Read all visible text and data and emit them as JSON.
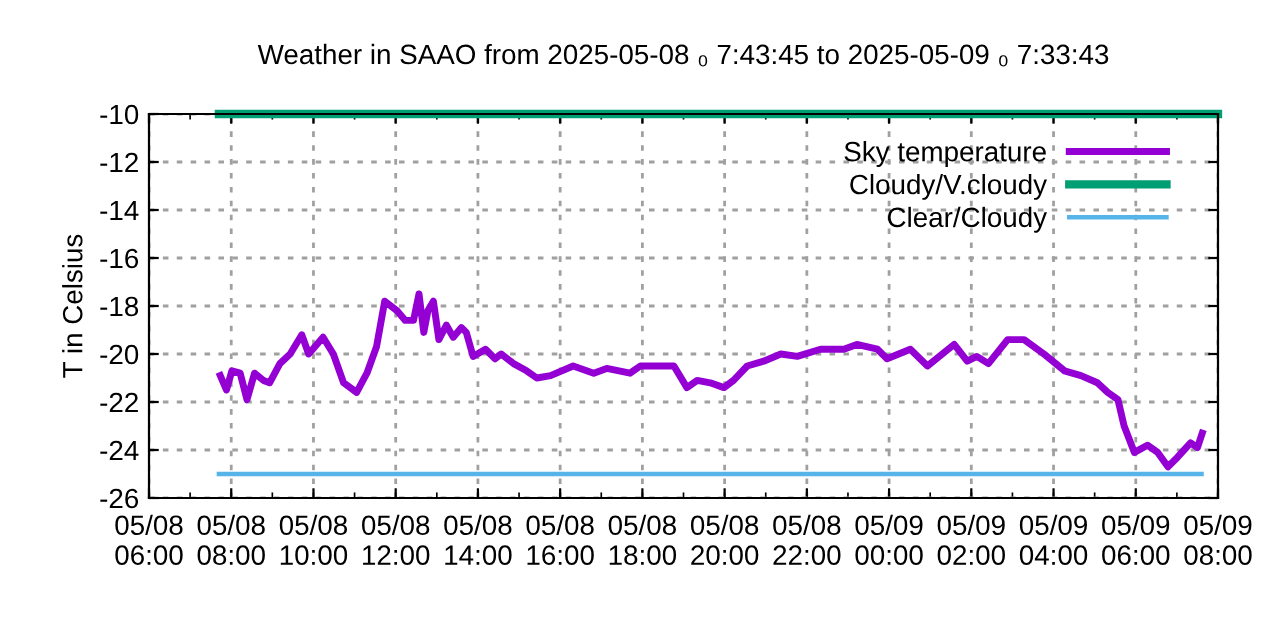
{
  "chart_data": {
    "type": "line",
    "title": "Weather in SAAO from 2025-05-08 ₀ 7:43:45 to 2025-05-09 ₀ 7:33:43",
    "ylabel": "T in Celsius",
    "xlim": [
      "2025-05-08T06:00",
      "2025-05-09T08:00"
    ],
    "ylim": [
      -26,
      -10
    ],
    "xticks": [
      {
        "value": "2025-05-08T06:00",
        "label": "05/08\n06:00"
      },
      {
        "value": "2025-05-08T08:00",
        "label": "05/08\n08:00"
      },
      {
        "value": "2025-05-08T10:00",
        "label": "05/08\n10:00"
      },
      {
        "value": "2025-05-08T12:00",
        "label": "05/08\n12:00"
      },
      {
        "value": "2025-05-08T14:00",
        "label": "05/08\n14:00"
      },
      {
        "value": "2025-05-08T16:00",
        "label": "05/08\n16:00"
      },
      {
        "value": "2025-05-08T18:00",
        "label": "05/08\n18:00"
      },
      {
        "value": "2025-05-08T20:00",
        "label": "05/08\n20:00"
      },
      {
        "value": "2025-05-08T22:00",
        "label": "05/08\n22:00"
      },
      {
        "value": "2025-05-09T00:00",
        "label": "05/09\n00:00"
      },
      {
        "value": "2025-05-09T02:00",
        "label": "05/09\n02:00"
      },
      {
        "value": "2025-05-09T04:00",
        "label": "05/09\n04:00"
      },
      {
        "value": "2025-05-09T06:00",
        "label": "05/09\n06:00"
      },
      {
        "value": "2025-05-09T08:00",
        "label": "05/09\n08:00"
      }
    ],
    "yticks": [
      -26,
      -24,
      -22,
      -20,
      -18,
      -16,
      -14,
      -12,
      -10
    ],
    "grid": true,
    "legend": "top right",
    "line_style": "solid",
    "marker": "none",
    "series": [
      {
        "name": "Sky temperature",
        "color": "#9400d3",
        "x": [
          "2025-05-08T07:44",
          "2025-05-08T07:53",
          "2025-05-08T08:01",
          "2025-05-08T08:13",
          "2025-05-08T08:23",
          "2025-05-08T08:34",
          "2025-05-08T08:47",
          "2025-05-08T08:56",
          "2025-05-08T09:11",
          "2025-05-08T09:26",
          "2025-05-08T09:43",
          "2025-05-08T09:53",
          "2025-05-08T10:14",
          "2025-05-08T10:29",
          "2025-05-08T10:44",
          "2025-05-08T11:03",
          "2025-05-08T11:18",
          "2025-05-08T11:32",
          "2025-05-08T11:44",
          "2025-05-08T12:02",
          "2025-05-08T12:14",
          "2025-05-08T12:26",
          "2025-05-08T12:34",
          "2025-05-08T12:41",
          "2025-05-08T12:47",
          "2025-05-08T12:55",
          "2025-05-08T13:03",
          "2025-05-08T13:14",
          "2025-05-08T13:24",
          "2025-05-08T13:36",
          "2025-05-08T13:43",
          "2025-05-08T13:53",
          "2025-05-08T14:11",
          "2025-05-08T14:25",
          "2025-05-08T14:34",
          "2025-05-08T14:52",
          "2025-05-08T15:11",
          "2025-05-08T15:26",
          "2025-05-08T15:46",
          "2025-05-08T16:19",
          "2025-05-08T16:49",
          "2025-05-08T17:08",
          "2025-05-08T17:42",
          "2025-05-08T17:57",
          "2025-05-08T18:22",
          "2025-05-08T18:46",
          "2025-05-08T19:05",
          "2025-05-08T19:20",
          "2025-05-08T19:39",
          "2025-05-08T19:59",
          "2025-05-08T20:13",
          "2025-05-08T20:33",
          "2025-05-08T20:57",
          "2025-05-08T21:22",
          "2025-05-08T21:46",
          "2025-05-08T22:20",
          "2025-05-08T22:54",
          "2025-05-08T23:13",
          "2025-05-08T23:43",
          "2025-05-08T23:57",
          "2025-05-09T00:31",
          "2025-05-09T00:56",
          "2025-05-09T01:35",
          "2025-05-09T01:54",
          "2025-05-09T02:08",
          "2025-05-09T02:25",
          "2025-05-09T02:53",
          "2025-05-09T03:17",
          "2025-05-09T03:46",
          "2025-05-09T04:16",
          "2025-05-09T04:40",
          "2025-05-09T05:04",
          "2025-05-09T05:19",
          "2025-05-09T05:34",
          "2025-05-09T05:43",
          "2025-05-09T05:58",
          "2025-05-09T06:17",
          "2025-05-09T06:32",
          "2025-05-09T06:47",
          "2025-05-09T07:01",
          "2025-05-09T07:20",
          "2025-05-09T07:30",
          "2025-05-09T07:37"
        ],
        "values": [
          -20.9,
          -21.5,
          -20.7,
          -20.8,
          -21.9,
          -20.8,
          -21.1,
          -21.2,
          -20.4,
          -20.0,
          -19.2,
          -20.0,
          -19.3,
          -20.0,
          -21.2,
          -21.6,
          -20.8,
          -19.7,
          -17.8,
          -18.2,
          -18.6,
          -18.6,
          -17.5,
          -19.1,
          -18.2,
          -17.8,
          -19.4,
          -18.8,
          -19.3,
          -18.9,
          -19.1,
          -20.1,
          -19.8,
          -20.2,
          -20.0,
          -20.4,
          -20.7,
          -21.0,
          -20.9,
          -20.5,
          -20.8,
          -20.6,
          -20.8,
          -20.5,
          -20.5,
          -20.5,
          -21.4,
          -21.1,
          -21.2,
          -21.4,
          -21.1,
          -20.5,
          -20.3,
          -20.0,
          -20.1,
          -19.8,
          -19.8,
          -19.6,
          -19.8,
          -20.2,
          -19.8,
          -20.5,
          -19.6,
          -20.3,
          -20.1,
          -20.4,
          -19.4,
          -19.4,
          -20.0,
          -20.7,
          -20.9,
          -21.2,
          -21.6,
          -21.9,
          -23.0,
          -24.1,
          -23.8,
          -24.1,
          -24.7,
          -24.3,
          -23.7,
          -23.9,
          -23.3
        ]
      },
      {
        "name": "Cloudy/V.cloudy",
        "color": "#009e73",
        "x": [
          "2025-05-08T07:42",
          "2025-05-09T08:00"
        ],
        "values": [
          -10,
          -10
        ]
      },
      {
        "name": "Clear/Cloudy",
        "color": "#56b4e9",
        "x": [
          "2025-05-08T07:42",
          "2025-05-09T07:36"
        ],
        "values": [
          -25,
          -25
        ]
      }
    ]
  }
}
